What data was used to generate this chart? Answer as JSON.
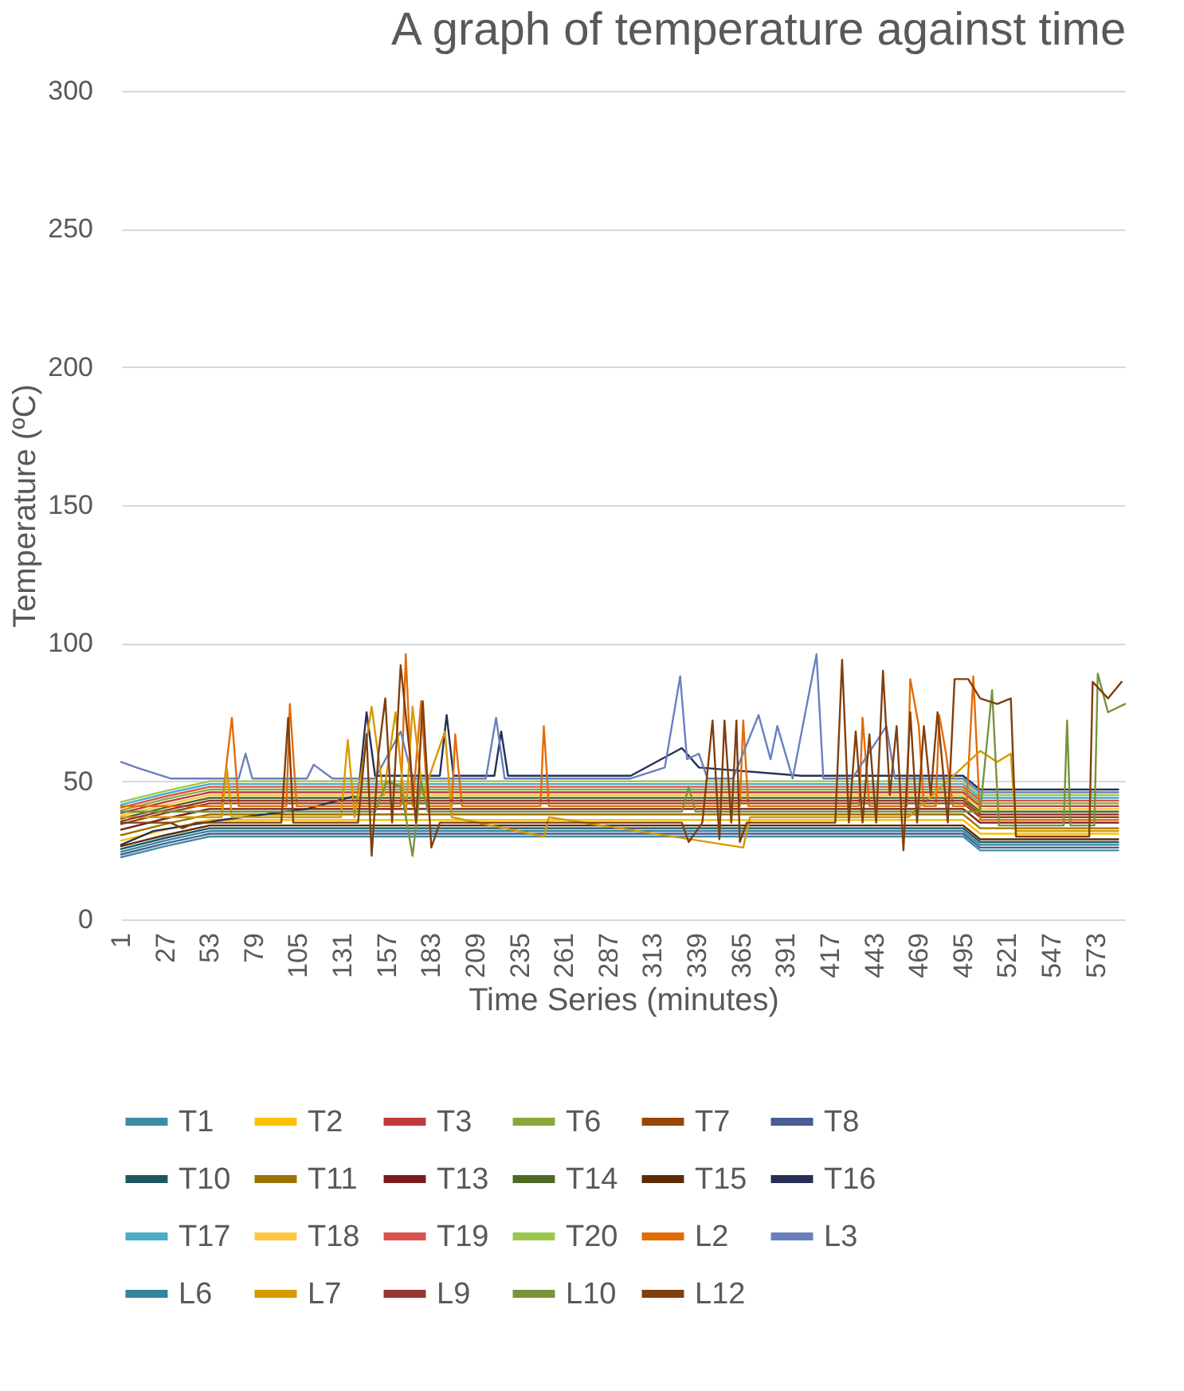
{
  "chart_data": {
    "type": "line",
    "title": "A graph of temperature against time",
    "xlabel": "Time Series (minutes)",
    "ylabel": "Temperature (ºC)",
    "xlim": [
      1,
      590
    ],
    "xticks": [
      1,
      27,
      53,
      79,
      105,
      131,
      157,
      183,
      209,
      235,
      261,
      287,
      313,
      339,
      365,
      391,
      417,
      443,
      469,
      495,
      521,
      547,
      573
    ],
    "ylim": [
      0,
      300
    ],
    "yticks": [
      0,
      50,
      100,
      150,
      200,
      250,
      300
    ],
    "grid": "y",
    "legend": "bottom",
    "x": [
      1,
      27,
      53,
      79,
      105,
      131,
      157,
      183,
      209,
      235,
      261,
      287,
      313,
      339,
      365,
      391,
      417,
      443,
      469,
      495,
      505,
      521,
      547,
      573,
      586
    ],
    "series": [
      {
        "name": "T1",
        "color": "#3a8fa3",
        "values": [
          22.5,
          26.5,
          30,
          30,
          30,
          30,
          30,
          30,
          30,
          30,
          30,
          30,
          30,
          30,
          30,
          30,
          30,
          30,
          30,
          30,
          25,
          25,
          25,
          25,
          25
        ]
      },
      {
        "name": "T2",
        "color": "#ffc000",
        "values": [
          28.5,
          32.5,
          36,
          36,
          36,
          36,
          36,
          36,
          36,
          36,
          36,
          36,
          36,
          36,
          36,
          36,
          36,
          36,
          36,
          36,
          31,
          31,
          31,
          31,
          31
        ]
      },
      {
        "name": "T3",
        "color": "#c0393b",
        "values": [
          38.5,
          42.5,
          46,
          46,
          46,
          46,
          46,
          46,
          46,
          46,
          46,
          46,
          46,
          46,
          46,
          46,
          46,
          46,
          46,
          46,
          41,
          41,
          41,
          41,
          41
        ]
      },
      {
        "name": "T6",
        "color": "#86a93a",
        "values": [
          39.5,
          43.5,
          47,
          47,
          47,
          47,
          47,
          47,
          47,
          47,
          47,
          47,
          47,
          47,
          47,
          47,
          47,
          47,
          47,
          47,
          42,
          42,
          42,
          42,
          42
        ]
      },
      {
        "name": "T7",
        "color": "#974706",
        "values": [
          34.5,
          38.5,
          42,
          42,
          42,
          42,
          42,
          42,
          42,
          42,
          42,
          42,
          42,
          42,
          42,
          42,
          42,
          42,
          42,
          42,
          37,
          37,
          37,
          37,
          37
        ]
      },
      {
        "name": "T8",
        "color": "#4a5b96",
        "values": [
          23.5,
          27.5,
          31,
          31,
          31,
          31,
          31,
          31,
          31,
          31,
          31,
          31,
          31,
          31,
          31,
          31,
          31,
          31,
          31,
          31,
          26,
          26,
          26,
          26,
          26
        ]
      },
      {
        "name": "T10",
        "color": "#1f5563",
        "values": [
          25.5,
          29.5,
          33,
          33,
          33,
          33,
          33,
          33,
          33,
          33,
          33,
          33,
          33,
          33,
          33,
          33,
          33,
          33,
          33,
          33,
          28,
          28,
          28,
          28,
          28
        ]
      },
      {
        "name": "T11",
        "color": "#9c7200",
        "values": [
          30.5,
          34.5,
          38,
          38,
          38,
          38,
          38,
          38,
          38,
          38,
          38,
          38,
          38,
          38,
          38,
          38,
          38,
          38,
          38,
          38,
          33,
          33,
          33,
          33,
          33
        ]
      },
      {
        "name": "T13",
        "color": "#7a1c1c",
        "values": [
          32.5,
          36.5,
          40,
          40,
          40,
          40,
          40,
          40,
          40,
          40,
          40,
          40,
          40,
          40,
          40,
          40,
          40,
          40,
          40,
          40,
          35,
          35,
          35,
          35,
          35
        ]
      },
      {
        "name": "T14",
        "color": "#4e6a26",
        "values": [
          36.5,
          40.5,
          44,
          44,
          44,
          44,
          44,
          44,
          44,
          44,
          44,
          44,
          44,
          44,
          44,
          44,
          44,
          44,
          44,
          44,
          39,
          39,
          39,
          39,
          39
        ]
      },
      {
        "name": "T15",
        "color": "#5c2c06",
        "values": [
          26.5,
          30.5,
          34,
          34,
          34,
          34,
          34,
          34,
          34,
          34,
          34,
          34,
          34,
          34,
          34,
          34,
          34,
          34,
          34,
          34,
          29,
          29,
          29,
          29,
          29
        ]
      },
      {
        "name": "T16",
        "color": "#263056",
        "x": [
          1,
          20,
          60,
          110,
          140,
          145,
          150,
          188,
          192,
          196,
          220,
          224,
          228,
          300,
          330,
          340,
          400,
          495,
          505,
          586
        ],
        "values": [
          27,
          32,
          36,
          40,
          45,
          75,
          52,
          52,
          74,
          52,
          52,
          68,
          52,
          52,
          62,
          55,
          52,
          52,
          47,
          47
        ]
      },
      {
        "name": "T17",
        "color": "#4bacc6",
        "values": [
          41.5,
          45.5,
          49,
          49,
          49,
          49,
          49,
          49,
          49,
          49,
          49,
          49,
          49,
          49,
          49,
          49,
          49,
          49,
          49,
          49,
          44,
          44,
          44,
          44,
          44
        ]
      },
      {
        "name": "T18",
        "color": "#ffc63f",
        "values": [
          37.5,
          41.5,
          45,
          45,
          45,
          45,
          45,
          45,
          45,
          45,
          45,
          45,
          45,
          45,
          45,
          45,
          45,
          45,
          45,
          45,
          40,
          40,
          40,
          40,
          40
        ]
      },
      {
        "name": "T19",
        "color": "#d9534f",
        "values": [
          40.5,
          44.5,
          48,
          48,
          48,
          48,
          48,
          48,
          48,
          48,
          48,
          48,
          48,
          48,
          48,
          48,
          48,
          48,
          48,
          48,
          43,
          43,
          43,
          43,
          43
        ]
      },
      {
        "name": "T20",
        "color": "#9bc84c",
        "values": [
          42.5,
          46.5,
          50,
          50,
          50,
          50,
          50,
          50,
          50,
          50,
          50,
          50,
          50,
          50,
          50,
          50,
          50,
          50,
          50,
          50,
          45,
          45,
          45,
          45,
          45
        ]
      },
      {
        "name": "L2",
        "color": "#e36c09",
        "x": [
          1,
          60,
          66,
          70,
          98,
          100,
          104,
          165,
          168,
          172,
          177,
          181,
          195,
          197,
          201,
          247,
          249,
          252,
          364,
          366,
          369,
          434,
          436,
          440,
          462,
          464,
          469,
          472,
          479,
          481,
          485,
          489,
          497,
          501,
          505,
          586
        ],
        "values": [
          41,
          41,
          73,
          41,
          41,
          78,
          41,
          41,
          96,
          41,
          79,
          41,
          41,
          67,
          41,
          41,
          70,
          41,
          41,
          72,
          41,
          41,
          73,
          41,
          41,
          87,
          70,
          41,
          41,
          74,
          60,
          41,
          41,
          88,
          36,
          36
        ]
      },
      {
        "name": "L3",
        "color": "#6a7fbf",
        "x": [
          1,
          10,
          30,
          45,
          70,
          74,
          78,
          110,
          114,
          125,
          150,
          165,
          172,
          200,
          215,
          221,
          226,
          260,
          300,
          320,
          329,
          333,
          340,
          345,
          360,
          375,
          382,
          386,
          395,
          409,
          413,
          430,
          450,
          455,
          470,
          495,
          505,
          586
        ],
        "values": [
          57,
          55,
          51,
          51,
          51,
          60,
          51,
          51,
          56,
          51,
          51,
          68,
          51,
          51,
          51,
          73,
          51,
          51,
          51,
          55,
          88,
          58,
          60,
          51,
          51,
          74,
          58,
          70,
          51,
          96,
          51,
          51,
          70,
          51,
          51,
          51,
          46,
          46
        ]
      },
      {
        "name": "L6",
        "color": "#31859c",
        "values": [
          24.5,
          28.5,
          32,
          32,
          32,
          32,
          32,
          32,
          32,
          32,
          32,
          32,
          32,
          32,
          32,
          32,
          32,
          32,
          32,
          32,
          27,
          27,
          27,
          27,
          27
        ]
      },
      {
        "name": "L7",
        "color": "#d69a00",
        "x": [
          1,
          60,
          63,
          66,
          130,
          134,
          138,
          148,
          155,
          162,
          168,
          172,
          178,
          191,
          195,
          249,
          252,
          366,
          370,
          459,
          463,
          505,
          515,
          523,
          526,
          586
        ],
        "values": [
          37,
          37,
          55,
          37,
          37,
          65,
          37,
          77,
          45,
          75,
          37,
          77,
          45,
          68,
          37,
          30,
          37,
          26,
          37,
          37,
          37,
          61,
          57,
          60,
          32,
          32
        ]
      },
      {
        "name": "L9",
        "color": "#953735",
        "values": [
          35.5,
          39.5,
          43,
          43,
          43,
          43,
          43,
          43,
          43,
          43,
          43,
          43,
          43,
          43,
          43,
          43,
          43,
          43,
          43,
          43,
          38,
          38,
          38,
          38,
          38
        ]
      },
      {
        "name": "L10",
        "color": "#77933c",
        "x": [
          1,
          150,
          157,
          165,
          172,
          177,
          181,
          330,
          334,
          338,
          505,
          512,
          516,
          554,
          556,
          558,
          572,
          574,
          580,
          590
        ],
        "values": [
          39,
          39,
          50,
          48,
          23,
          50,
          39,
          39,
          48,
          39,
          39,
          83,
          34,
          34,
          72,
          34,
          34,
          89,
          75,
          78
        ]
      },
      {
        "name": "L12",
        "color": "#7f3f0f",
        "x": [
          1,
          30,
          37,
          45,
          95,
          99,
          102,
          140,
          145,
          148,
          152,
          156,
          160,
          165,
          170,
          174,
          178,
          183,
          188,
          200,
          230,
          260,
          280,
          330,
          334,
          342,
          348,
          352,
          355,
          359,
          362,
          364,
          368,
          420,
          424,
          428,
          432,
          436,
          440,
          444,
          448,
          452,
          456,
          460,
          464,
          468,
          472,
          476,
          480,
          486,
          490,
          498,
          505,
          515,
          523,
          526,
          569,
          571,
          580,
          588
        ],
        "values": [
          35,
          35,
          33,
          35,
          35,
          73,
          35,
          35,
          67,
          23,
          60,
          80,
          35,
          92,
          62,
          35,
          79,
          26,
          35,
          35,
          35,
          35,
          35,
          35,
          28,
          35,
          72,
          29,
          72,
          35,
          72,
          28,
          35,
          35,
          94,
          35,
          68,
          35,
          67,
          35,
          90,
          45,
          70,
          25,
          75,
          35,
          70,
          45,
          75,
          35,
          87,
          87,
          80,
          78,
          80,
          30,
          30,
          86,
          80,
          86
        ]
      }
    ]
  }
}
